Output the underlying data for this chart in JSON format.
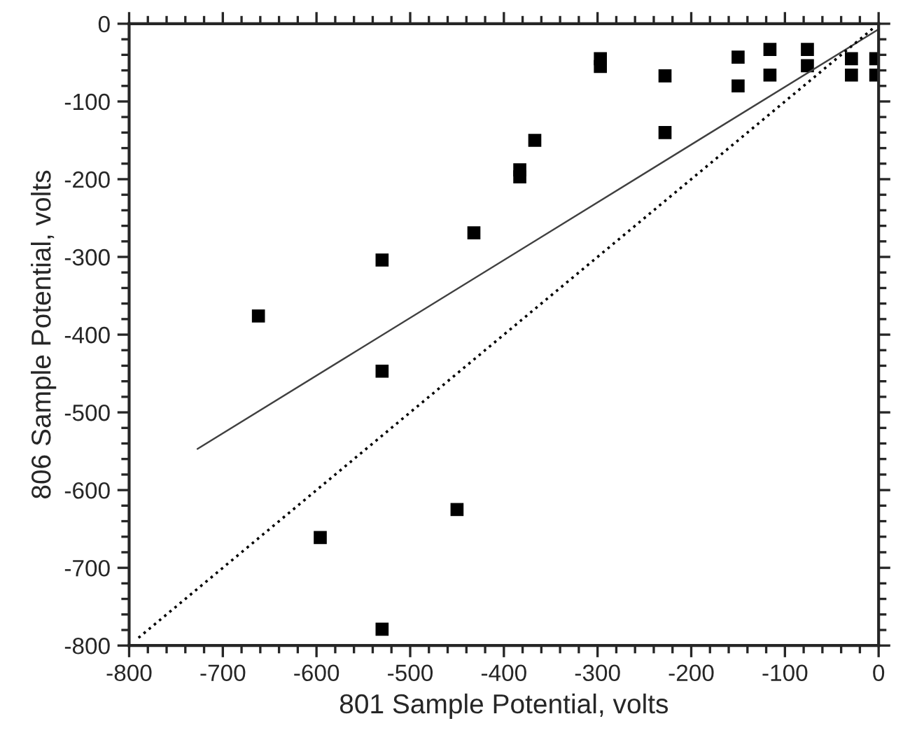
{
  "chart_data": {
    "type": "scatter",
    "xlabel": "801 Sample Potential, volts",
    "ylabel": "806 Sample Potential, volts",
    "xlim": [
      -800,
      0
    ],
    "xticks": [
      -800,
      -700,
      -600,
      -500,
      -400,
      -300,
      -200,
      -100,
      0
    ],
    "ylim": [
      -800,
      0
    ],
    "yticks": [
      -800,
      -700,
      -600,
      -500,
      -400,
      -300,
      -200,
      -100,
      0
    ],
    "grid": false,
    "legend": false,
    "series": [
      {
        "color": "#000000",
        "marker": "square",
        "x": [
          -662,
          -596,
          -530,
          -530,
          -530,
          -450,
          -432,
          -383,
          -383,
          -367,
          -297,
          -297,
          -228,
          -228,
          -150,
          -150,
          -116,
          -116,
          -76,
          -76,
          -29,
          -29,
          -3,
          -3
        ],
        "values": [
          -376,
          -661,
          -304,
          -447,
          -779,
          -625,
          -269,
          -188,
          -197,
          -150,
          -45,
          -55,
          -67,
          -140,
          -43,
          -80,
          -33,
          -66,
          -33,
          -54,
          -45,
          -66,
          -45,
          -66
        ]
      },
      {
        "type": "line",
        "color": "#404040",
        "line_style": "solid",
        "marker": "none",
        "x": [
          -727,
          0
        ],
        "values": [
          -547,
          -7
        ]
      },
      {
        "type": "line",
        "color": "#000000",
        "line_style": "dotted",
        "marker": "none",
        "x": [
          -790,
          -5
        ],
        "values": [
          -790,
          -5
        ]
      }
    ]
  }
}
